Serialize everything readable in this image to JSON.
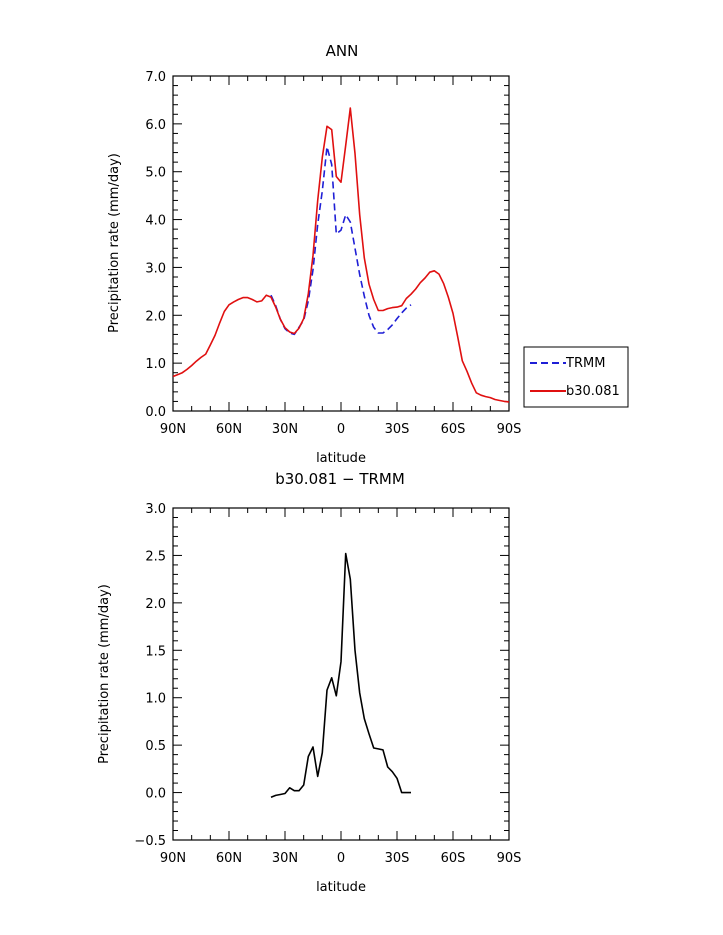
{
  "chart_data": [
    {
      "type": "line",
      "title": "ANN",
      "xlabel": "latitude",
      "ylabel": "Precipitation rate (mm/day)",
      "xlim": [
        -90,
        90
      ],
      "ylim": [
        0,
        7
      ],
      "xticks": [
        -90,
        -60,
        -30,
        0,
        30,
        60,
        90
      ],
      "xticklabels": [
        "90N",
        "60N",
        "30N",
        "0",
        "30S",
        "60S",
        "90S"
      ],
      "yticks": [
        0,
        1,
        2,
        3,
        4,
        5,
        6,
        7
      ],
      "yticklabels": [
        "0.0",
        "1.0",
        "2.0",
        "3.0",
        "4.0",
        "5.0",
        "6.0",
        "7.0"
      ],
      "legend_position": "right",
      "series": [
        {
          "name": "TRMM",
          "color": "#1f1fd6",
          "style": "dashed",
          "x": [
            -37.5,
            -35,
            -32.5,
            -30,
            -27.5,
            -25,
            -22.5,
            -20,
            -17.5,
            -15,
            -12.5,
            -10,
            -7.5,
            -5,
            -2.5,
            0,
            2.5,
            5,
            7.5,
            10,
            12.5,
            15,
            17.5,
            20,
            22.5,
            25,
            27.5,
            30,
            32.5,
            35,
            37.5
          ],
          "y": [
            2.42,
            2.2,
            1.92,
            1.72,
            1.63,
            1.6,
            1.75,
            1.9,
            2.3,
            2.95,
            3.9,
            4.6,
            5.52,
            5.15,
            3.7,
            3.78,
            4.1,
            3.95,
            3.4,
            2.85,
            2.4,
            2.0,
            1.75,
            1.63,
            1.63,
            1.7,
            1.8,
            1.93,
            2.05,
            2.15,
            2.22
          ]
        },
        {
          "name": "b30.081",
          "color": "#e01010",
          "style": "solid",
          "x": [
            -90,
            -87.5,
            -85,
            -82.5,
            -80,
            -77.5,
            -75,
            -72.5,
            -70,
            -67.5,
            -65,
            -62.5,
            -60,
            -57.5,
            -55,
            -52.5,
            -50,
            -47.5,
            -45,
            -42.5,
            -40,
            -37.5,
            -35,
            -32.5,
            -30,
            -27.5,
            -25,
            -22.5,
            -20,
            -17.5,
            -15,
            -12.5,
            -10,
            -7.5,
            -5,
            -2.5,
            0,
            2.5,
            5,
            7.5,
            10,
            12.5,
            15,
            17.5,
            20,
            22.5,
            25,
            27.5,
            30,
            32.5,
            35,
            37.5,
            40,
            42.5,
            45,
            47.5,
            50,
            52.5,
            55,
            57.5,
            60,
            62.5,
            65,
            67.5,
            70,
            72.5,
            75,
            77.5,
            80,
            82.5,
            85,
            87.5,
            90
          ],
          "y": [
            0.72,
            0.76,
            0.8,
            0.87,
            0.95,
            1.04,
            1.12,
            1.19,
            1.38,
            1.58,
            1.84,
            2.08,
            2.22,
            2.28,
            2.33,
            2.37,
            2.37,
            2.33,
            2.28,
            2.3,
            2.42,
            2.38,
            2.17,
            1.92,
            1.74,
            1.65,
            1.62,
            1.73,
            1.93,
            2.45,
            3.25,
            4.4,
            5.3,
            5.95,
            5.88,
            4.9,
            4.78,
            5.55,
            6.33,
            5.38,
            4.1,
            3.2,
            2.65,
            2.33,
            2.1,
            2.1,
            2.14,
            2.16,
            2.17,
            2.2,
            2.35,
            2.44,
            2.55,
            2.68,
            2.78,
            2.9,
            2.93,
            2.86,
            2.66,
            2.38,
            2.04,
            1.55,
            1.05,
            0.83,
            0.58,
            0.38,
            0.33,
            0.3,
            0.28,
            0.24,
            0.22,
            0.2,
            0.19
          ]
        }
      ]
    },
    {
      "type": "line",
      "title": "b30.081 − TRMM",
      "xlabel": "latitude",
      "ylabel": "Precipitation rate (mm/day)",
      "xlim": [
        -90,
        90
      ],
      "ylim": [
        -0.5,
        3
      ],
      "xticks": [
        -90,
        -60,
        -30,
        0,
        30,
        60,
        90
      ],
      "xticklabels": [
        "90N",
        "60N",
        "30N",
        "0",
        "30S",
        "60S",
        "90S"
      ],
      "yticks": [
        -0.5,
        0,
        0.5,
        1,
        1.5,
        2,
        2.5,
        3
      ],
      "yticklabels": [
        "−0.5",
        "0.0",
        "0.5",
        "1.0",
        "1.5",
        "2.0",
        "2.5",
        "3.0"
      ],
      "series": [
        {
          "name": "",
          "color": "#000000",
          "style": "solid",
          "x": [
            -37.5,
            -35,
            -32.5,
            -30,
            -27.5,
            -25,
            -22.5,
            -20,
            -17.5,
            -15,
            -12.5,
            -10,
            -7.5,
            -5,
            -2.5,
            0,
            2.5,
            5,
            7.5,
            10,
            12.5,
            15,
            17.5,
            20,
            22.5,
            25,
            27.5,
            30,
            32.5,
            35,
            37.5
          ],
          "y": [
            -0.05,
            -0.03,
            -0.02,
            -0.01,
            0.05,
            0.02,
            0.02,
            0.08,
            0.38,
            0.48,
            0.17,
            0.42,
            1.08,
            1.21,
            1.02,
            1.38,
            2.52,
            2.25,
            1.5,
            1.05,
            0.78,
            0.62,
            0.47,
            0.46,
            0.45,
            0.27,
            0.22,
            0.15,
            0.0,
            0.0,
            0.0
          ]
        }
      ]
    }
  ]
}
